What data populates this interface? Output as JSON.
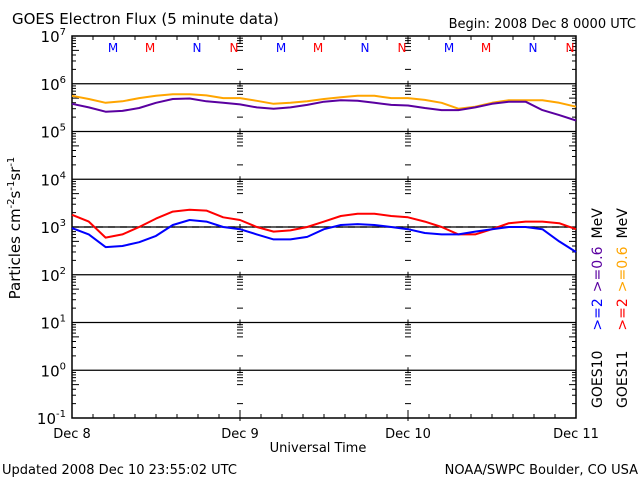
{
  "chart_data": {
    "type": "line",
    "title": "GOES Electron Flux (5 minute data)",
    "begin_label": "Begin: 2008 Dec 8 0000 UTC",
    "xlabel": "Universal Time",
    "ylabel": "Particles cm",
    "ylabel_parts": {
      "base": "Particles cm",
      "e1": "-2",
      "s": "s",
      "e2": "-1",
      "sr": "sr",
      "e3": "-1"
    },
    "yscale": "log",
    "ylim": [
      0.1,
      10000000
    ],
    "xlim_days": [
      0,
      3
    ],
    "x_tick_labels": [
      "Dec 8",
      "Dec 9",
      "Dec 10",
      "Dec 11"
    ],
    "y_tick_labels": [
      {
        "base": "10",
        "exp": "7"
      },
      {
        "base": "10",
        "exp": "6"
      },
      {
        "base": "10",
        "exp": "5"
      },
      {
        "base": "10",
        "exp": "4"
      },
      {
        "base": "10",
        "exp": "3"
      },
      {
        "base": "10",
        "exp": "2"
      },
      {
        "base": "10",
        "exp": "1"
      },
      {
        "base": "10",
        "exp": "0"
      },
      {
        "base": "10",
        "exp": "-1"
      }
    ],
    "threshold_line": 1000,
    "mn_markers": [
      {
        "label": "M",
        "day": 0.28,
        "color": "#0000ff"
      },
      {
        "label": "M",
        "day": 0.5,
        "color": "#ff0000"
      },
      {
        "label": "N",
        "day": 0.78,
        "color": "#0000ff"
      },
      {
        "label": "N",
        "day": 1.0,
        "color": "#ff0000"
      },
      {
        "label": "M",
        "day": 1.28,
        "color": "#0000ff"
      },
      {
        "label": "M",
        "day": 1.5,
        "color": "#ff0000"
      },
      {
        "label": "N",
        "day": 1.78,
        "color": "#0000ff"
      },
      {
        "label": "N",
        "day": 2.0,
        "color": "#ff0000"
      },
      {
        "label": "M",
        "day": 2.28,
        "color": "#0000ff"
      },
      {
        "label": "M",
        "day": 2.5,
        "color": "#ff0000"
      },
      {
        "label": "N",
        "day": 2.78,
        "color": "#0000ff"
      },
      {
        "label": "N",
        "day": 3.0,
        "color": "#ff0000"
      }
    ],
    "series": [
      {
        "name": "GOES11 >=0.6 MeV",
        "color": "#ffa500",
        "x": [
          0,
          0.1,
          0.2,
          0.3,
          0.4,
          0.5,
          0.6,
          0.7,
          0.8,
          0.9,
          1.0,
          1.1,
          1.2,
          1.3,
          1.4,
          1.5,
          1.6,
          1.7,
          1.8,
          1.9,
          2.0,
          2.1,
          2.2,
          2.3,
          2.4,
          2.5,
          2.6,
          2.7,
          2.8,
          2.9,
          3.0
        ],
        "y": [
          560000,
          480000,
          400000,
          430000,
          500000,
          560000,
          600000,
          600000,
          570000,
          500000,
          500000,
          440000,
          380000,
          400000,
          430000,
          480000,
          520000,
          560000,
          560000,
          500000,
          500000,
          460000,
          400000,
          300000,
          330000,
          400000,
          450000,
          450000,
          450000,
          400000,
          330000
        ]
      },
      {
        "name": "GOES10 >=0.6 MeV",
        "color": "#5a00a0",
        "x": [
          0,
          0.1,
          0.2,
          0.3,
          0.4,
          0.5,
          0.6,
          0.7,
          0.8,
          0.9,
          1.0,
          1.1,
          1.2,
          1.3,
          1.4,
          1.5,
          1.6,
          1.7,
          1.8,
          1.9,
          2.0,
          2.1,
          2.2,
          2.3,
          2.4,
          2.5,
          2.6,
          2.7,
          2.8,
          2.9,
          3.0
        ],
        "y": [
          380000,
          320000,
          260000,
          270000,
          310000,
          400000,
          480000,
          490000,
          430000,
          400000,
          370000,
          320000,
          300000,
          320000,
          360000,
          420000,
          450000,
          440000,
          400000,
          360000,
          350000,
          310000,
          280000,
          280000,
          320000,
          380000,
          420000,
          420000,
          280000,
          220000,
          170000
        ]
      },
      {
        "name": "GOES11 >=2 MeV",
        "color": "#ff0000",
        "x": [
          0,
          0.1,
          0.2,
          0.3,
          0.4,
          0.5,
          0.6,
          0.7,
          0.8,
          0.9,
          1.0,
          1.1,
          1.2,
          1.3,
          1.4,
          1.5,
          1.6,
          1.7,
          1.8,
          1.9,
          2.0,
          2.1,
          2.2,
          2.3,
          2.4,
          2.5,
          2.6,
          2.7,
          2.8,
          2.9,
          3.0
        ],
        "y": [
          1800,
          1300,
          600,
          700,
          1000,
          1500,
          2100,
          2300,
          2200,
          1600,
          1400,
          1000,
          800,
          850,
          1000,
          1300,
          1700,
          1900,
          1900,
          1700,
          1600,
          1300,
          1000,
          700,
          700,
          900,
          1200,
          1300,
          1300,
          1200,
          900
        ]
      },
      {
        "name": "GOES10 >=2 MeV",
        "color": "#0000ff",
        "x": [
          0,
          0.1,
          0.2,
          0.3,
          0.4,
          0.5,
          0.6,
          0.7,
          0.8,
          0.9,
          1.0,
          1.1,
          1.2,
          1.3,
          1.4,
          1.5,
          1.6,
          1.7,
          1.8,
          1.9,
          2.0,
          2.1,
          2.2,
          2.3,
          2.4,
          2.5,
          2.6,
          2.7,
          2.8,
          2.9,
          3.0
        ],
        "y": [
          950,
          700,
          380,
          400,
          480,
          650,
          1100,
          1400,
          1300,
          1000,
          900,
          700,
          550,
          550,
          620,
          900,
          1100,
          1150,
          1100,
          1000,
          900,
          750,
          700,
          700,
          800,
          900,
          1000,
          1000,
          900,
          500,
          300
        ]
      }
    ],
    "legend": [
      {
        "sat": "GOES10",
        "low": ">=2",
        "high": ">=0.6",
        "unit": "MeV",
        "low_color": "#0000ff",
        "high_color": "#5a00a0"
      },
      {
        "sat": "GOES11",
        "low": ">=2",
        "high": ">=0.6",
        "unit": "MeV",
        "low_color": "#ff0000",
        "high_color": "#ffa500"
      }
    ],
    "legend_placement": "right"
  },
  "footer": {
    "updated": "Updated 2008 Dec 10 23:55:02 UTC",
    "source": "NOAA/SWPC Boulder, CO USA"
  }
}
